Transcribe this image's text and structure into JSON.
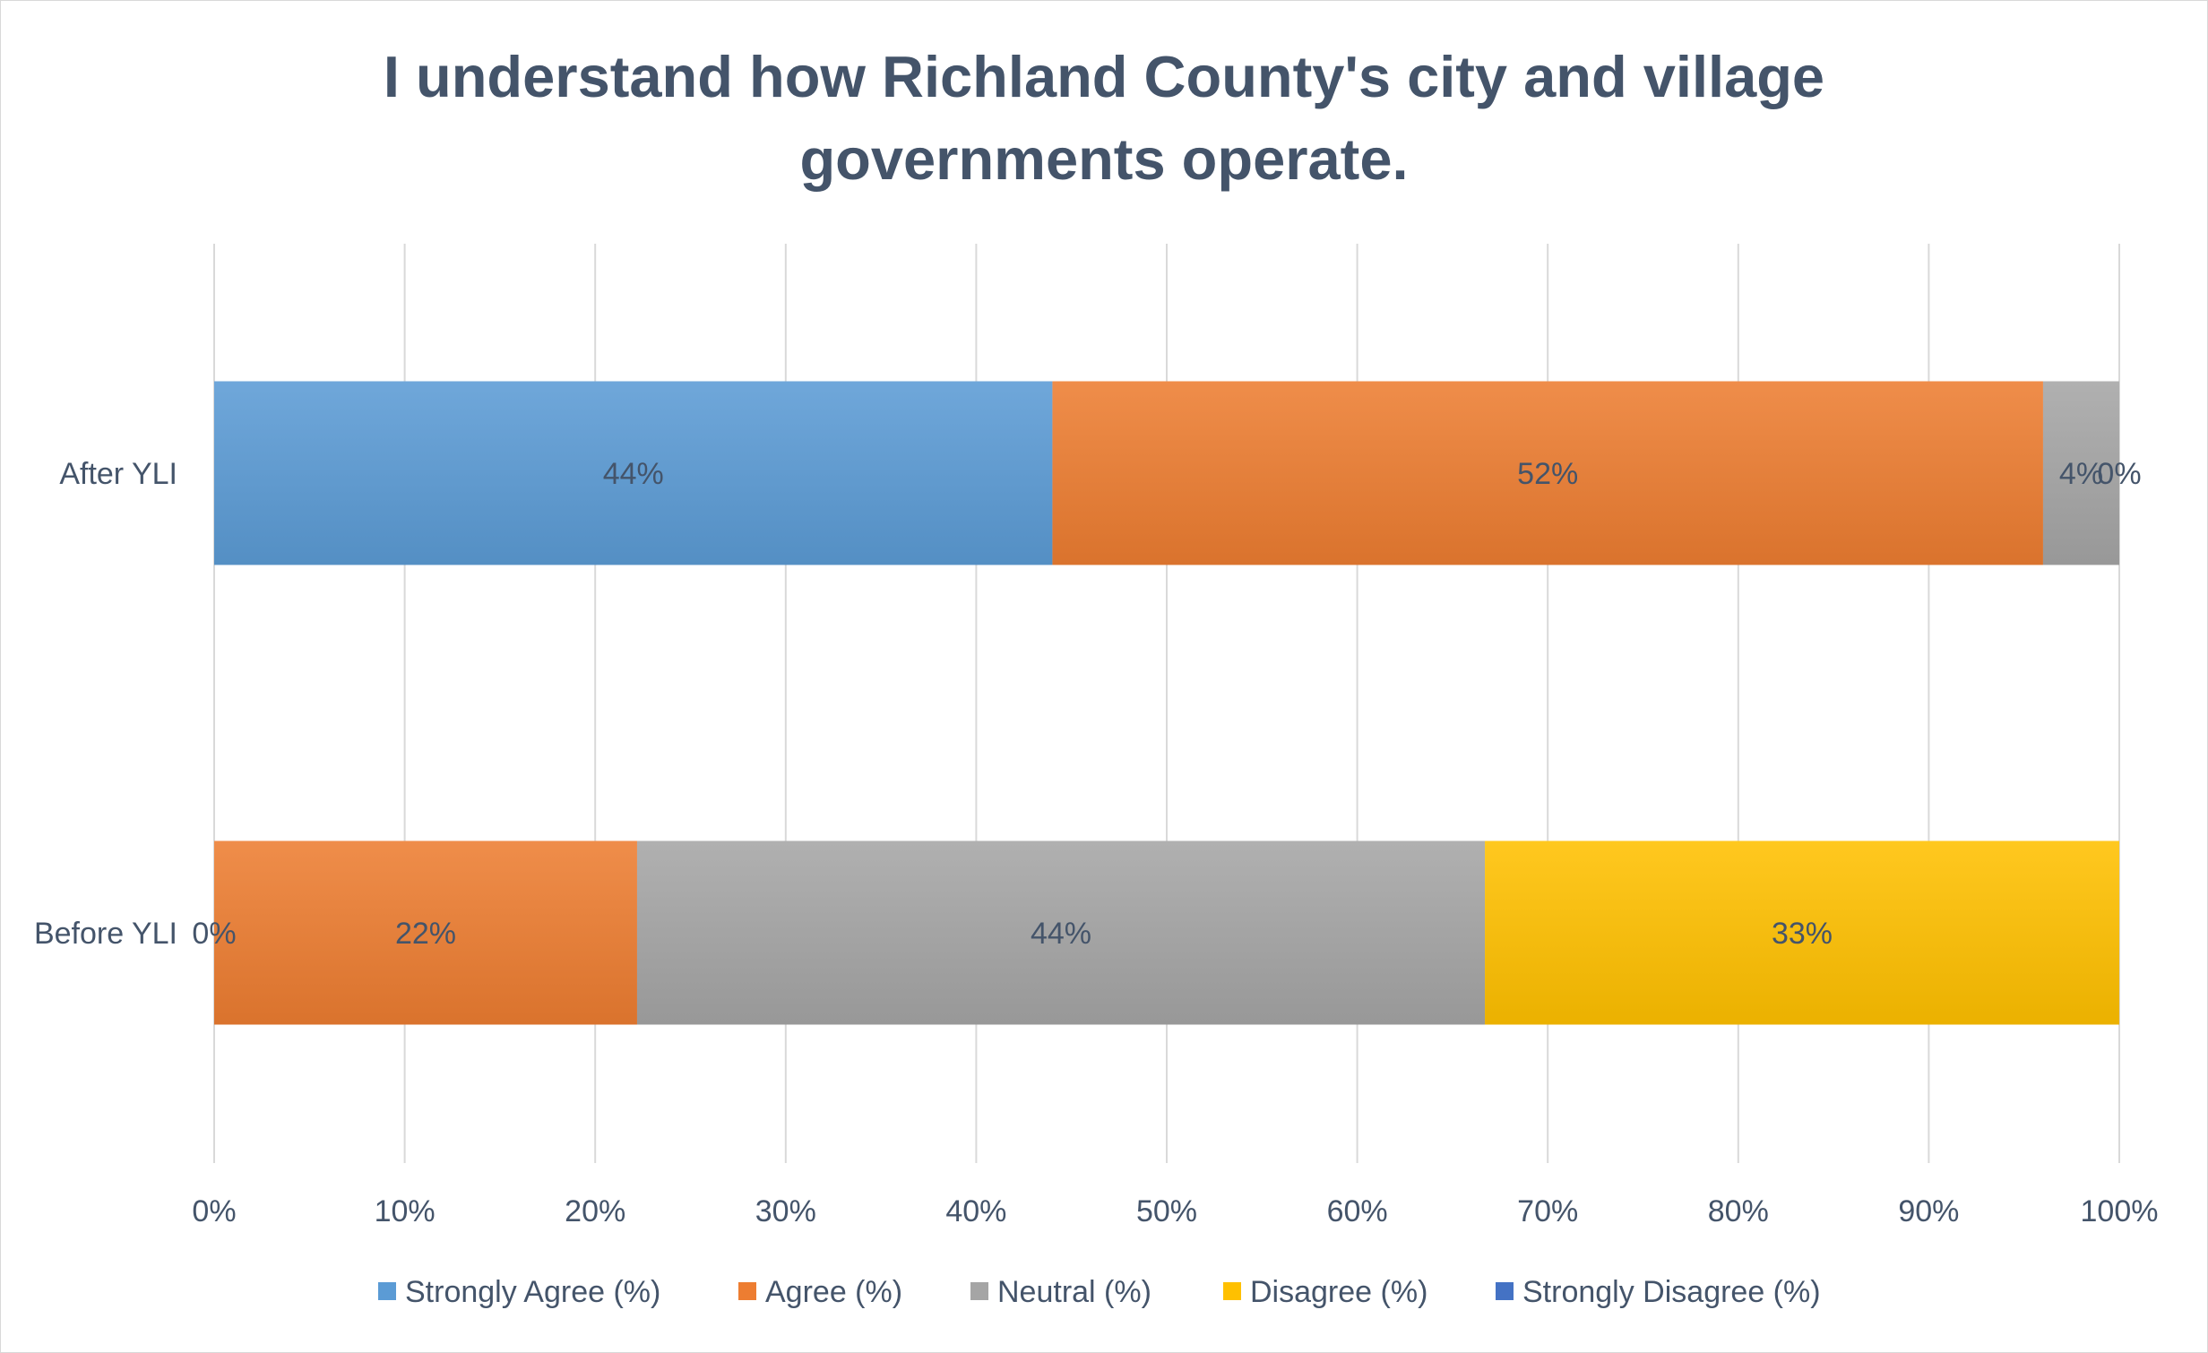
{
  "chart_data": {
    "type": "bar",
    "orientation": "horizontal",
    "stacked": "percent",
    "title": "I understand how Richland County's city and village governments operate.",
    "categories": [
      "After YLI",
      "Before YLI"
    ],
    "series": [
      {
        "name": "Strongly Agree (%)",
        "color": "#5b9bd5",
        "values": [
          44,
          0
        ],
        "labels": [
          "44%",
          "0%"
        ]
      },
      {
        "name": "Agree (%)",
        "color": "#ed7d31",
        "values": [
          52,
          22.2
        ],
        "labels": [
          "52%",
          "22%"
        ]
      },
      {
        "name": "Neutral (%)",
        "color": "#a5a5a5",
        "values": [
          4,
          44.5
        ],
        "labels": [
          "4%",
          "44%"
        ]
      },
      {
        "name": "Disagree (%)",
        "color": "#ffc000",
        "values": [
          0,
          33.3
        ],
        "labels": [
          "0%",
          "33%"
        ]
      },
      {
        "name": "Strongly Disagree (%)",
        "color": "#4472c4",
        "values": [
          0,
          0
        ],
        "labels": [
          "",
          ""
        ]
      }
    ],
    "x_ticks": [
      "0%",
      "10%",
      "20%",
      "30%",
      "40%",
      "50%",
      "60%",
      "70%",
      "80%",
      "90%",
      "100%"
    ],
    "xlim": [
      0,
      100
    ],
    "grid": "vertical",
    "legend_position": "bottom"
  }
}
